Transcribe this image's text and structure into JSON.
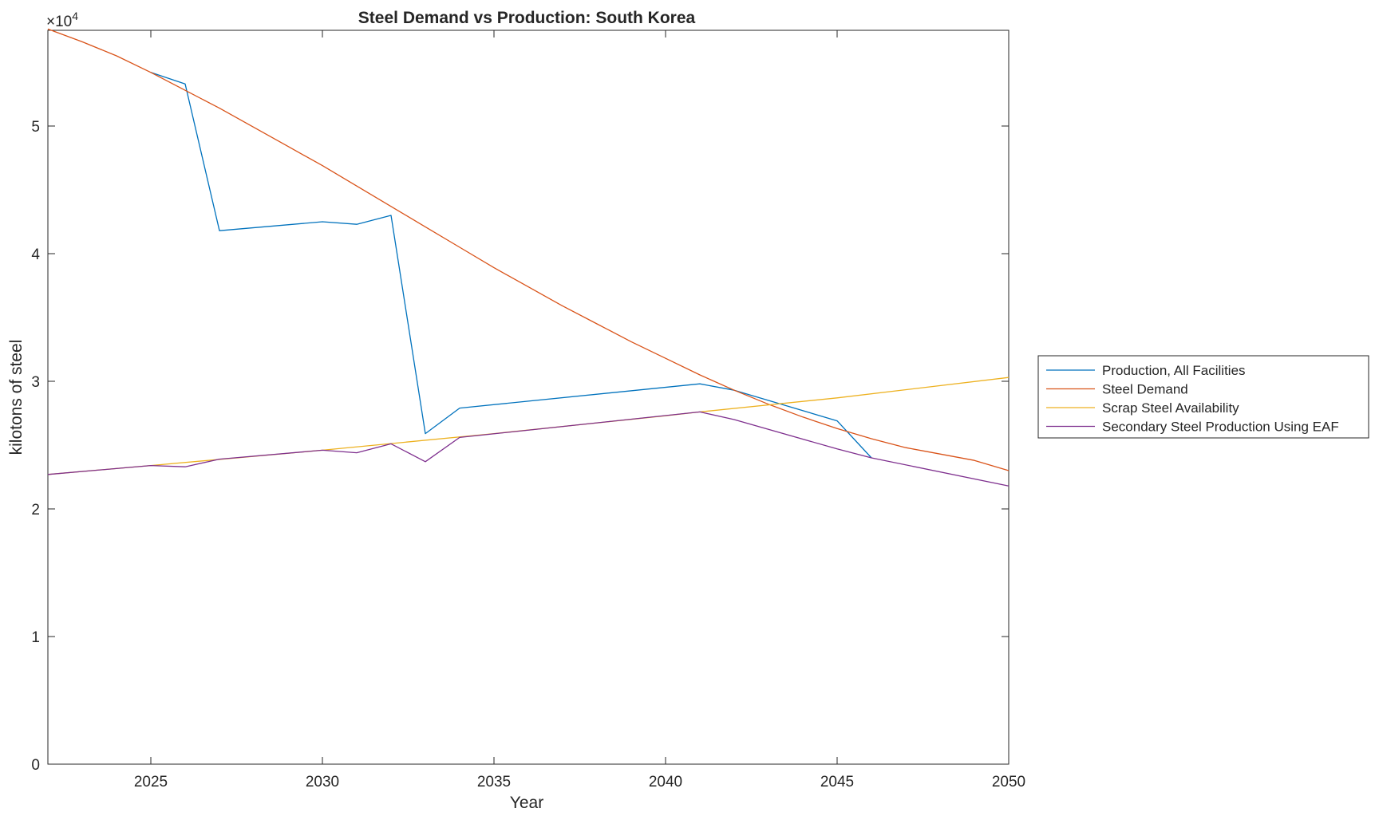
{
  "chart_data": {
    "type": "line",
    "title": "Steel Demand vs Production: South Korea",
    "xlabel": "Year",
    "ylabel": "kilotons of steel",
    "exponent_label": "×10",
    "exponent_power": "4",
    "xlim": [
      2022,
      2050
    ],
    "ylim": [
      0,
      57500
    ],
    "xticks": [
      2025,
      2030,
      2035,
      2040,
      2045,
      2050
    ],
    "yticks": [
      0,
      10000,
      20000,
      30000,
      40000,
      50000
    ],
    "ytick_labels": [
      "0",
      "1",
      "2",
      "3",
      "4",
      "5"
    ],
    "grid": false,
    "legend_position": "outside-right",
    "series": [
      {
        "name": "Production, All Facilities",
        "color": "#0072BD",
        "x": [
          2025,
          2026,
          2027,
          2030,
          2031,
          2032,
          2033,
          2034,
          2041,
          2042,
          2045,
          2046
        ],
        "y": [
          54200,
          53300,
          41800,
          42500,
          42300,
          43000,
          25900,
          27900,
          29800,
          29300,
          26900,
          24000
        ]
      },
      {
        "name": "Steel Demand",
        "color": "#D95319",
        "x": [
          2022,
          2023,
          2024,
          2025,
          2026,
          2027,
          2028,
          2029,
          2030,
          2031,
          2032,
          2033,
          2034,
          2035,
          2036,
          2037,
          2038,
          2039,
          2040,
          2041,
          2042,
          2043,
          2044,
          2045,
          2046,
          2047,
          2048,
          2049,
          2050
        ],
        "y": [
          57600,
          56600,
          55500,
          54200,
          52800,
          51400,
          49900,
          48400,
          46900,
          45300,
          43700,
          42100,
          40500,
          38900,
          37400,
          35900,
          34500,
          33100,
          31800,
          30500,
          29300,
          28200,
          27200,
          26300,
          25500,
          24800,
          24300,
          23800,
          23000
        ]
      },
      {
        "name": "Scrap Steel Availability",
        "color": "#EDB120",
        "x": [
          2022,
          2025,
          2030,
          2035,
          2040,
          2041,
          2045,
          2050
        ],
        "y": [
          22700,
          23400,
          24600,
          25900,
          27300,
          27600,
          28700,
          30300
        ]
      },
      {
        "name": "Secondary Steel Production Using EAF",
        "color": "#7E2F8E",
        "x": [
          2022,
          2025,
          2026,
          2027,
          2030,
          2031,
          2032,
          2033,
          2034,
          2041,
          2042,
          2045,
          2046,
          2050
        ],
        "y": [
          22700,
          23400,
          23300,
          23900,
          24600,
          24400,
          25100,
          23700,
          25600,
          27600,
          27000,
          24700,
          24000,
          21800
        ]
      }
    ]
  }
}
